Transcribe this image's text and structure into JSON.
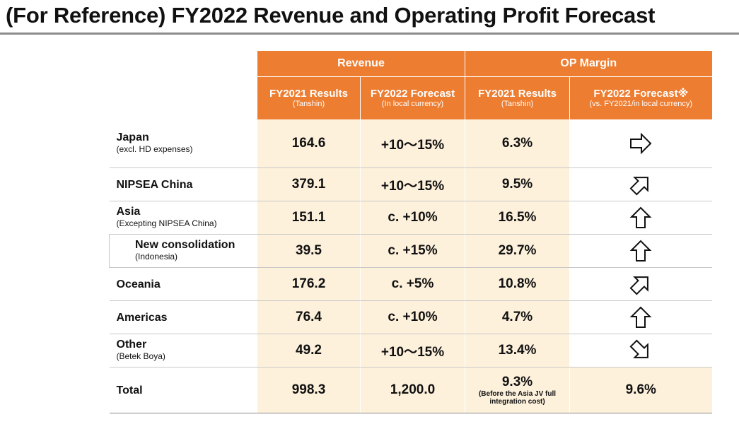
{
  "title": "(For Reference)  FY2022 Revenue and Operating Profit Forecast",
  "header": {
    "revenue_group": "Revenue",
    "op_group": "OP Margin",
    "col1": {
      "label": "FY2021 Results",
      "note": "(Tanshin)"
    },
    "col2": {
      "label": "FY2022 Forecast",
      "note": "(In local currency)"
    },
    "col3": {
      "label": "FY2021 Results",
      "note": "(Tanshin)"
    },
    "col4": {
      "label": "FY2022 Forecast※",
      "note": "(vs. FY2021/in local currency)"
    }
  },
  "rows": [
    {
      "label": "Japan",
      "note": "(excl. HD expenses)",
      "rev2021": "164.6",
      "rev2022": "+10～15%",
      "op2021": "6.3%",
      "trend": "right-arrow-icon"
    },
    {
      "label": "NIPSEA China",
      "note": "",
      "rev2021": "379.1",
      "rev2022": "+10～15%",
      "op2021": "9.5%",
      "trend": "up-right-arrow-icon"
    },
    {
      "label": "Asia",
      "note": "(Excepting NIPSEA China)",
      "rev2021": "151.1",
      "rev2022": "c. +10%",
      "op2021": "16.5%",
      "trend": "up-arrow-icon"
    },
    {
      "label": "New consolidation",
      "note": "(Indonesia)",
      "rev2021": "39.5",
      "rev2022": "c. +15%",
      "op2021": "29.7%",
      "trend": "up-arrow-icon"
    },
    {
      "label": "Oceania",
      "note": "",
      "rev2021": "176.2",
      "rev2022": "c. +5%",
      "op2021": "10.8%",
      "trend": "up-right-arrow-icon"
    },
    {
      "label": "Americas",
      "note": "",
      "rev2021": "76.4",
      "rev2022": "c. +10%",
      "op2021": "4.7%",
      "trend": "up-arrow-icon"
    },
    {
      "label": "Other",
      "note": "(Betek Boya)",
      "rev2021": "49.2",
      "rev2022": "+10～15%",
      "op2021": "13.4%",
      "trend": "down-right-arrow-icon"
    }
  ],
  "total": {
    "label": "Total",
    "rev2021": "998.3",
    "rev2022": "1,200.0",
    "op2021": "9.3%",
    "op2021_note": "(Before the Asia JV full integration cost)",
    "op2022": "9.6%"
  },
  "colors": {
    "accent": "#ed7d31",
    "cell_bg": "#fdf1dc"
  }
}
